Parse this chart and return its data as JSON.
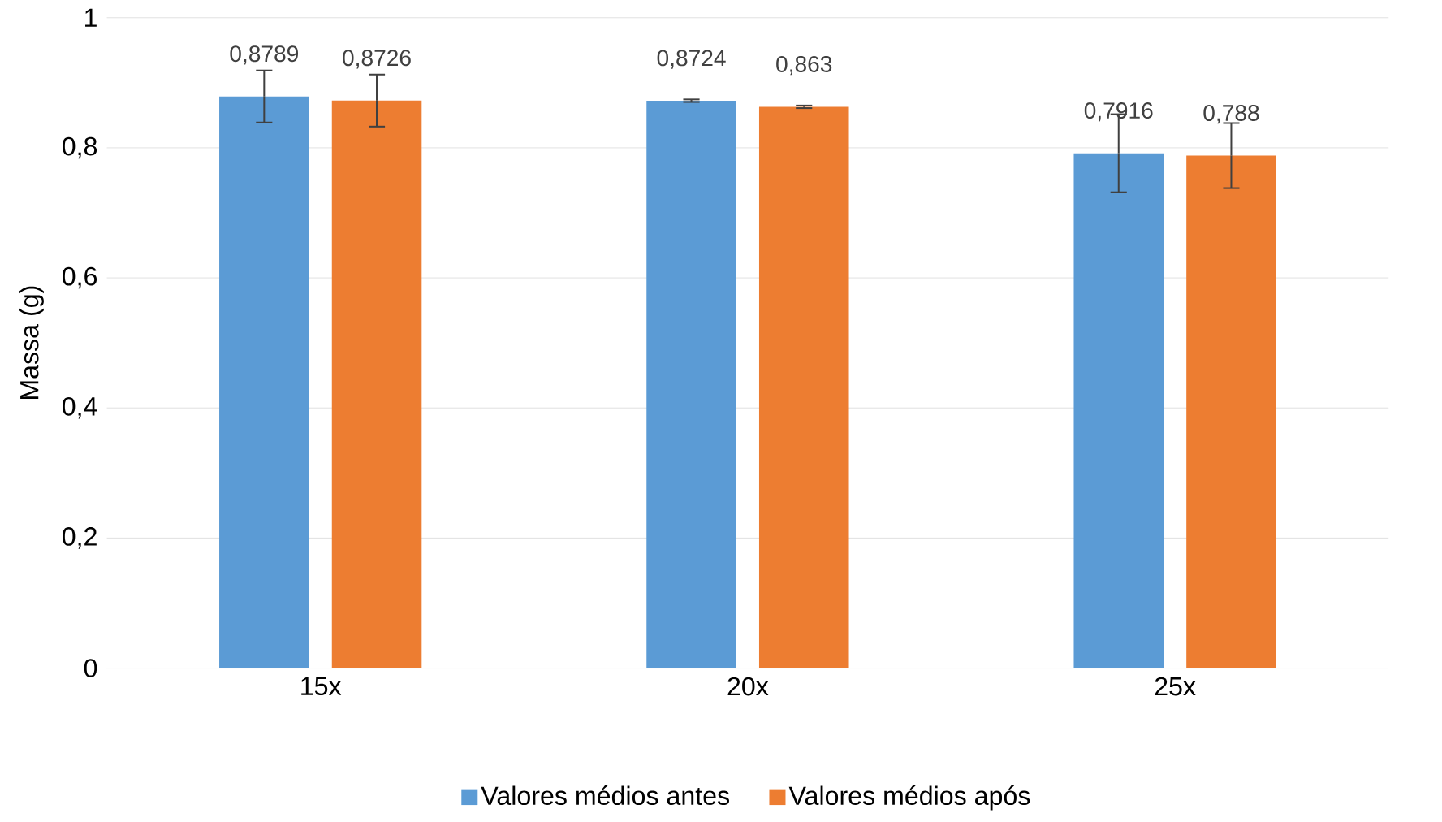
{
  "chart_data": {
    "type": "bar",
    "ylabel": "Massa (g)",
    "categories": [
      "15x",
      "20x",
      "25x"
    ],
    "series": [
      {
        "name": "Valores médios antes",
        "color": "#5b9bd5",
        "values": [
          0.8789,
          0.8724,
          0.7916
        ],
        "errors": [
          0.04,
          0.002,
          0.06
        ],
        "value_labels": [
          "0,8789",
          "0,8724",
          "0,7916"
        ]
      },
      {
        "name": "Valores médios após",
        "color": "#ed7d31",
        "values": [
          0.8726,
          0.863,
          0.788
        ],
        "errors": [
          0.04,
          0.002,
          0.05
        ],
        "value_labels": [
          "0,8726",
          "0,863",
          "0,788"
        ]
      }
    ],
    "ylim": [
      0,
      1
    ],
    "yticks": [
      {
        "value": 0,
        "label": "0"
      },
      {
        "value": 0.2,
        "label": "0,2"
      },
      {
        "value": 0.4,
        "label": "0,4"
      },
      {
        "value": 0.6,
        "label": "0,6"
      },
      {
        "value": 0.8,
        "label": "0,8"
      },
      {
        "value": 1,
        "label": "1"
      }
    ],
    "grid": "y",
    "legend": "bottom"
  }
}
